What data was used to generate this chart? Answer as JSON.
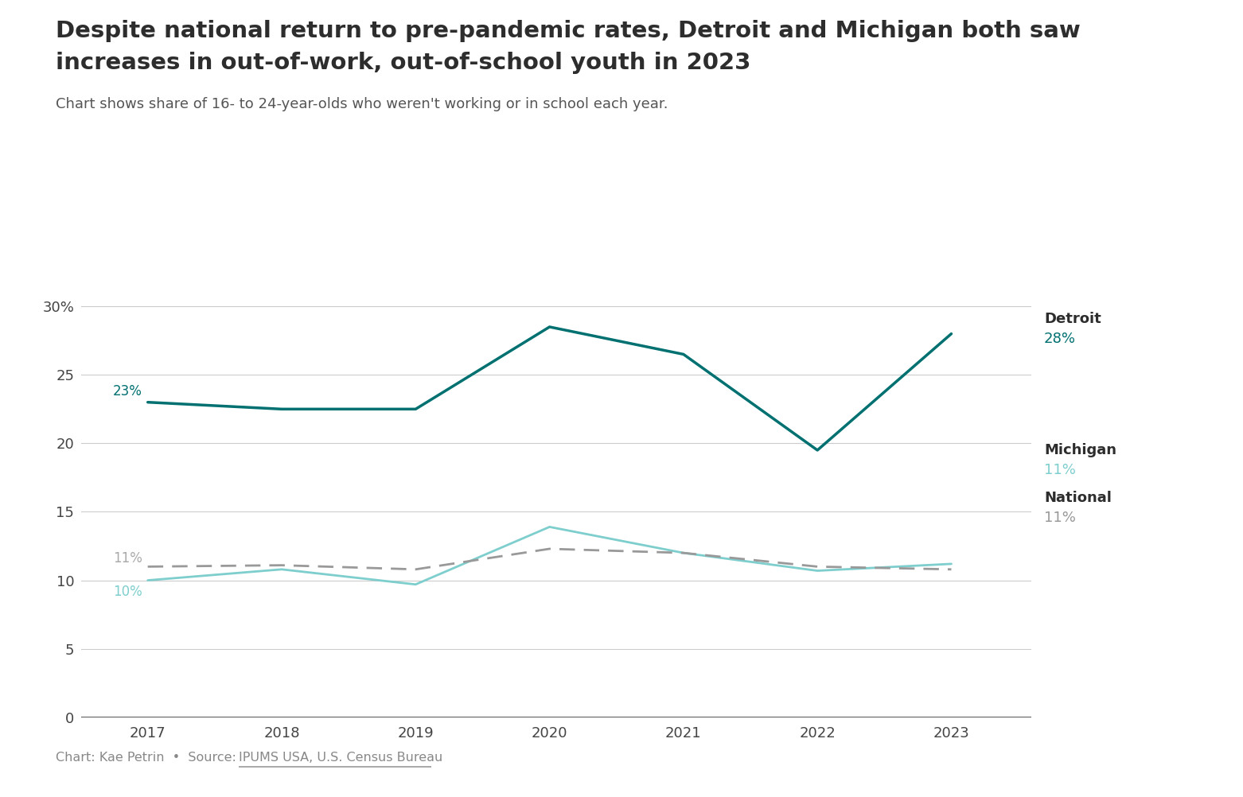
{
  "title_line1": "Despite national return to pre-pandemic rates, Detroit and Michigan both saw",
  "title_line2": "increases in out-of-work, out-of-school youth in 2023",
  "subtitle": "Chart shows share of 16- to 24-year-olds who weren't working or in school each year.",
  "years": [
    2017,
    2018,
    2019,
    2020,
    2021,
    2022,
    2023
  ],
  "detroit": [
    23,
    22.5,
    22.5,
    28.5,
    26.5,
    19.5,
    28
  ],
  "michigan": [
    10,
    10.8,
    9.7,
    13.9,
    12.0,
    10.7,
    11.2
  ],
  "national": [
    11.0,
    11.1,
    10.8,
    12.3,
    12.0,
    11.0,
    10.8
  ],
  "detroit_color": "#007070",
  "michigan_color": "#7ecece",
  "national_color": "#999999",
  "background_color": "#ffffff",
  "title_color": "#2d2d2d",
  "subtitle_color": "#555555",
  "grid_color": "#cccccc",
  "axis_color": "#444444",
  "source_text": "Chart: Kae Petrin  •  Source: IPUMS USA, U.S. Census Bureau",
  "ylim": [
    0,
    32
  ],
  "yticks": [
    0,
    5,
    10,
    15,
    20,
    25,
    30
  ],
  "ytick_labels": [
    "0",
    "5",
    "10",
    "15",
    "20",
    "25",
    "30%"
  ],
  "label_right_detroit": "Detroit",
  "label_right_michigan": "Michigan",
  "label_right_national": "National",
  "val_detroit": "28%",
  "val_michigan": "11%",
  "val_national": "11%",
  "val_start_detroit": "23%",
  "val_start_michigan": "10%",
  "val_start_national": "11%"
}
